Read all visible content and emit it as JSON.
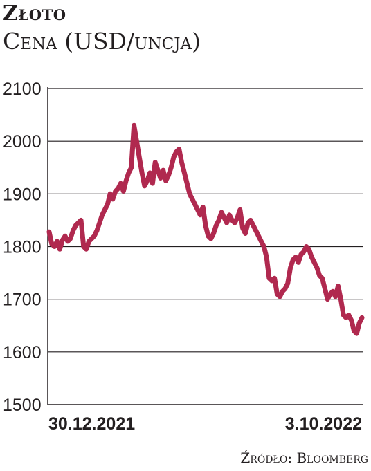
{
  "chart_data": {
    "type": "line",
    "title": "Złoto",
    "subtitle": "Cena (USD/uncja)",
    "source": "Źródło: Bloomberg",
    "ylim": [
      1500,
      2100
    ],
    "yticks": [
      1500,
      1600,
      1700,
      1800,
      1900,
      2000,
      2100
    ],
    "xtick_labels": [
      "30.12.2021",
      "3.10.2022"
    ],
    "grid": "horizontal",
    "line_color": "#b0294f",
    "series": [
      {
        "values": [
          1828,
          1805,
          1800,
          1810,
          1795,
          1812,
          1820,
          1810,
          1815,
          1830,
          1840,
          1845,
          1850,
          1800,
          1795,
          1810,
          1815,
          1820,
          1830,
          1845,
          1860,
          1870,
          1880,
          1900,
          1890,
          1905,
          1910,
          1920,
          1905,
          1925,
          1940,
          1950,
          2030,
          2000,
          1970,
          1940,
          1915,
          1925,
          1940,
          1920,
          1960,
          1945,
          1930,
          1945,
          1925,
          1935,
          1950,
          1970,
          1980,
          1985,
          1960,
          1940,
          1920,
          1900,
          1890,
          1880,
          1870,
          1860,
          1875,
          1840,
          1820,
          1815,
          1825,
          1840,
          1850,
          1865,
          1855,
          1845,
          1860,
          1850,
          1845,
          1855,
          1870,
          1835,
          1825,
          1845,
          1850,
          1840,
          1830,
          1820,
          1810,
          1800,
          1780,
          1740,
          1735,
          1740,
          1710,
          1705,
          1715,
          1720,
          1730,
          1760,
          1775,
          1780,
          1770,
          1785,
          1790,
          1800,
          1795,
          1780,
          1770,
          1760,
          1745,
          1740,
          1720,
          1700,
          1710,
          1715,
          1705,
          1725,
          1700,
          1670,
          1665,
          1670,
          1660,
          1640,
          1635,
          1655,
          1665
        ]
      }
    ]
  }
}
